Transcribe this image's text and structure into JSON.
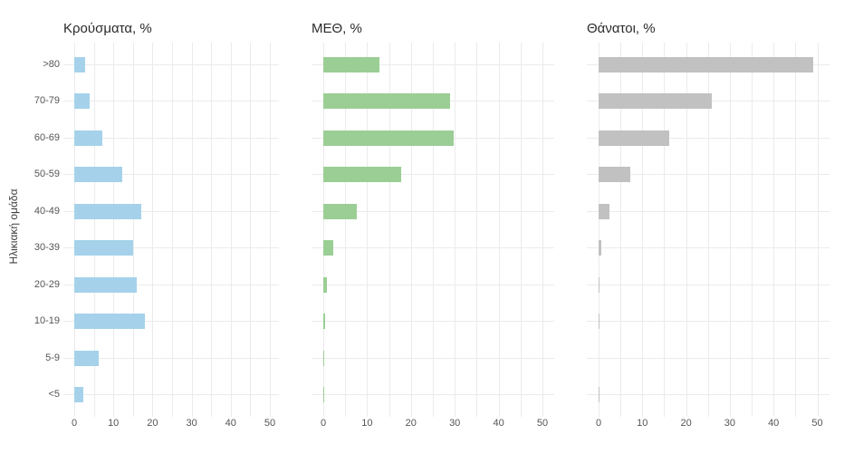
{
  "style": {
    "background": "#ffffff",
    "grid_color": "#ebebeb",
    "axis_text_color": "#555555",
    "title_color": "#2b2b2b",
    "y_axis_title_color": "#3f3f3f",
    "cases_bar_color": "#a5d2ea",
    "icu_bar_color": "#9bce95",
    "deaths_bar_color": "#c1c1c1"
  },
  "figure": {
    "y_axis_label": "Ηλικιακή ομάδα"
  },
  "chart_data": [
    {
      "type": "bar",
      "orientation": "horizontal",
      "id": "cases",
      "title": "Κρούσματα, %",
      "categories": [
        ">80",
        "70-79",
        "60-69",
        "50-59",
        "40-49",
        "30-39",
        "20-29",
        "10-19",
        "5-9",
        "<5"
      ],
      "values": [
        2.8,
        4.0,
        7.2,
        12.3,
        17.1,
        15.0,
        15.9,
        18.0,
        6.2,
        2.2
      ],
      "bar_color": "#a5d2ea",
      "xticks": [
        0,
        10,
        20,
        30,
        40,
        50
      ],
      "xlim": [
        0,
        52.5
      ],
      "grid_interval": 5,
      "ylabel": "Ηλικιακή ομάδα",
      "grid": true,
      "legend": false
    },
    {
      "type": "bar",
      "orientation": "horizontal",
      "id": "icu",
      "title": "ΜΕΘ, %",
      "categories": [
        ">80",
        "70-79",
        "60-69",
        "50-59",
        "40-49",
        "30-39",
        "20-29",
        "10-19",
        "5-9",
        "<5"
      ],
      "values": [
        12.9,
        28.9,
        29.7,
        17.8,
        7.6,
        2.2,
        0.9,
        0.4,
        0.1,
        0.1
      ],
      "bar_color": "#9bce95",
      "xticks": [
        0,
        10,
        20,
        30,
        40,
        50
      ],
      "xlim": [
        0,
        52.5
      ],
      "grid_interval": 5,
      "ylabel": "Ηλικιακή ομάδα",
      "grid": true,
      "legend": false
    },
    {
      "type": "bar",
      "orientation": "horizontal",
      "id": "deaths",
      "title": "Θάνατοι, %",
      "categories": [
        ">80",
        "70-79",
        "60-69",
        "50-59",
        "40-49",
        "30-39",
        "20-29",
        "10-19",
        "5-9",
        "<5"
      ],
      "values": [
        49.0,
        25.8,
        16.1,
        7.2,
        2.4,
        0.7,
        0.1,
        0.1,
        0,
        0.1
      ],
      "bar_color": "#c1c1c1",
      "xticks": [
        0,
        10,
        20,
        30,
        40,
        50
      ],
      "xlim": [
        0,
        52.5
      ],
      "grid_interval": 5,
      "ylabel": "Ηλικιακή ομάδα",
      "grid": true,
      "legend": false
    }
  ]
}
